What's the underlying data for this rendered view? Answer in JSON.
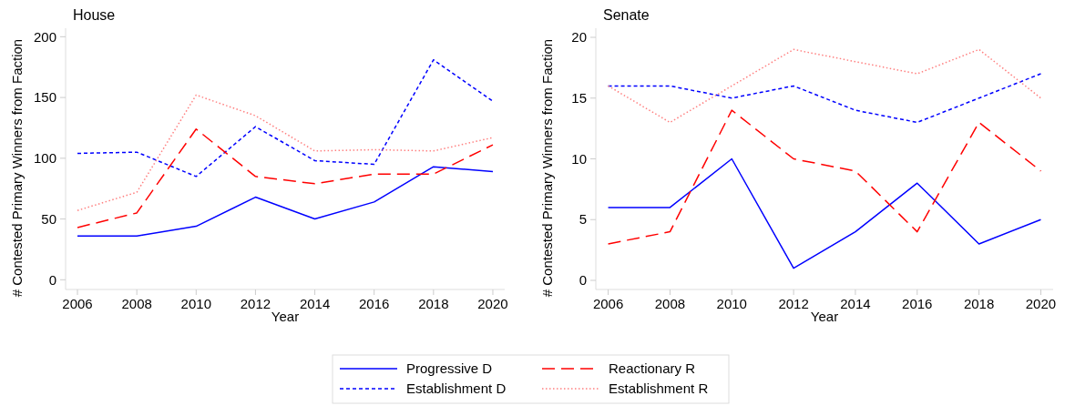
{
  "chart_data": [
    {
      "type": "line",
      "title": "House",
      "xlabel": "Year",
      "ylabel": "# Contested Primary Winners from Faction",
      "x": [
        2006,
        2008,
        2010,
        2012,
        2014,
        2016,
        2018,
        2020
      ],
      "xlim": [
        2005.6,
        2020.4
      ],
      "xticks": [
        2006,
        2008,
        2010,
        2012,
        2014,
        2016,
        2018,
        2020
      ],
      "ylim": [
        -8,
        207
      ],
      "yticks": [
        0,
        50,
        100,
        150,
        200
      ],
      "grid": false,
      "legend": "bottom",
      "series": [
        {
          "name": "Progressive D",
          "color": "#0000ff",
          "line_style": "solid",
          "values": [
            36,
            36,
            44,
            68,
            50,
            64,
            93,
            89
          ]
        },
        {
          "name": "Establishment D",
          "color": "#0000ff",
          "line_style": "dashed",
          "values": [
            104,
            105,
            85,
            126,
            98,
            95,
            181,
            147
          ]
        },
        {
          "name": "Reactionary R",
          "color": "#ff0000",
          "line_style": "dashed",
          "values": [
            43,
            55,
            124,
            85,
            79,
            87,
            87,
            111
          ]
        },
        {
          "name": "Establishment R",
          "color": "#ff8080",
          "line_style": "dotted",
          "values": [
            57,
            72,
            152,
            135,
            106,
            107,
            106,
            117
          ]
        }
      ]
    },
    {
      "type": "line",
      "title": "Senate",
      "xlabel": "Year",
      "ylabel": "# Contested Primary Winners from Faction",
      "x": [
        2006,
        2008,
        2010,
        2012,
        2014,
        2016,
        2018,
        2020
      ],
      "xlim": [
        2005.6,
        2020.4
      ],
      "xticks": [
        2006,
        2008,
        2010,
        2012,
        2014,
        2016,
        2018,
        2020
      ],
      "ylim": [
        -0.75,
        20.75
      ],
      "yticks": [
        0,
        5,
        10,
        15,
        20
      ],
      "grid": false,
      "legend": "bottom",
      "series": [
        {
          "name": "Progressive D",
          "color": "#0000ff",
          "line_style": "solid",
          "values": [
            6,
            6,
            10,
            1,
            4,
            8,
            3,
            5
          ]
        },
        {
          "name": "Establishment D",
          "color": "#0000ff",
          "line_style": "dashed",
          "values": [
            16,
            16,
            15,
            16,
            14,
            13,
            15,
            17
          ]
        },
        {
          "name": "Reactionary R",
          "color": "#ff0000",
          "line_style": "dashed",
          "values": [
            3,
            4,
            14,
            10,
            9,
            4,
            13,
            9
          ]
        },
        {
          "name": "Establishment R",
          "color": "#ff8080",
          "line_style": "dotted",
          "values": [
            16,
            13,
            16,
            19,
            18,
            17,
            19,
            15
          ]
        }
      ]
    }
  ]
}
